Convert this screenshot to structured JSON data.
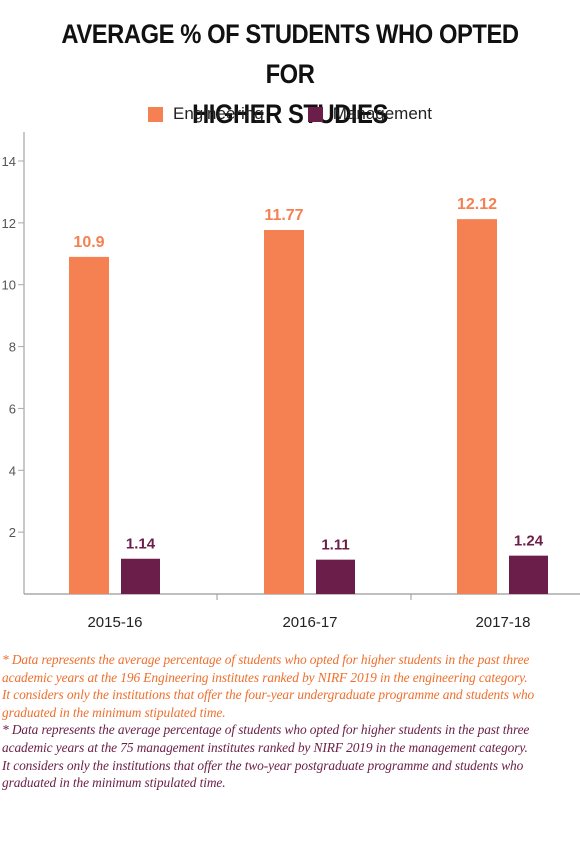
{
  "chart_data": {
    "type": "bar",
    "title": "AVERAGE % OF STUDENTS WHO OPTED FOR HIGHER STUDIES",
    "title_lines": [
      "AVERAGE % OF STUDENTS WHO OPTED FOR",
      "HIGHER STUDIES"
    ],
    "categories": [
      "2015-16",
      "2016-17",
      "2017-18"
    ],
    "series": [
      {
        "name": "Engineering",
        "values": [
          10.9,
          11.77,
          12.12
        ],
        "color": "#f58052",
        "labels": [
          "10.9",
          "11.77",
          "12.12"
        ]
      },
      {
        "name": "Management",
        "values": [
          1.14,
          1.11,
          1.24
        ],
        "color": "#6c1e4a",
        "labels": [
          "1.14",
          "1.11",
          "1.24"
        ]
      }
    ],
    "yticks": [
      "2",
      "4",
      "6",
      "8",
      "10",
      "12",
      "14"
    ],
    "ylim": [
      0,
      14
    ],
    "legend_position": "top-center",
    "grid": false,
    "xlabel": "",
    "ylabel": ""
  },
  "notes": {
    "engineering": [
      "* Data represents the average percentage of students who opted for higher students in the past three academic years at the 196 Engineering institutes ranked by NIRF 2019 in the engineering category.",
      "It considers only the institutions that offer the four-year undergraduate programme and students who graduated in the minimum stipulated time."
    ],
    "management": [
      "* Data represents the average percentage of students who opted for higher students in the past three academic years at the 75 management institutes ranked by NIRF 2019 in the management category.",
      "It considers only the institutions that offer the two-year postgraduate programme and students who graduated in the minimum stipulated time."
    ]
  }
}
